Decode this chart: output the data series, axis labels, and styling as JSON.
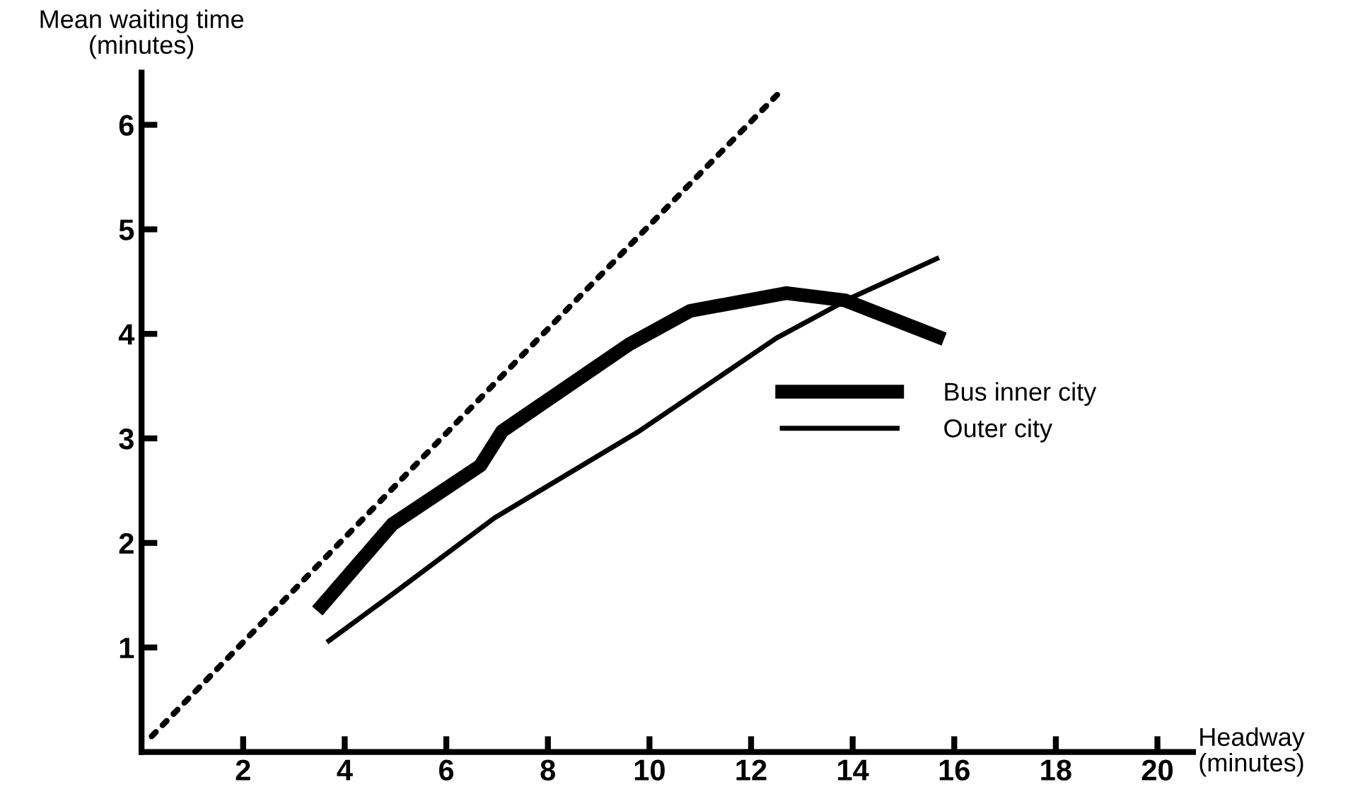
{
  "chart_data": {
    "type": "line",
    "xlabel": "Headway\n(minutes)",
    "ylabel": "Mean waiting time\n(minutes)",
    "xlim": [
      0,
      20.7
    ],
    "ylim": [
      0,
      6.5
    ],
    "xticks": [
      2,
      4,
      6,
      8,
      10,
      12,
      14,
      16,
      18,
      20
    ],
    "yticks": [
      1,
      2,
      3,
      4,
      5,
      6
    ],
    "grid": false,
    "legend": "right",
    "marker": "none",
    "series": [
      {
        "color": "#000000",
        "line_style": "dotted",
        "x": [
          0.2,
          7.1,
          12.64
        ],
        "values": [
          0.15,
          3.6,
          6.35
        ]
      },
      {
        "name": "Bus inner city",
        "color": "#000000",
        "line_style": "solid",
        "x": [
          3.46,
          4.94,
          6.67,
          7.1,
          9.6,
          10.8,
          12.7,
          13.85,
          15.8
        ],
        "values": [
          1.35,
          2.18,
          2.74,
          3.07,
          3.9,
          4.22,
          4.39,
          4.32,
          3.95
        ]
      },
      {
        "name": "Outer city",
        "color": "#000000",
        "line_style": "solid",
        "x": [
          3.65,
          4.94,
          6.95,
          9.8,
          12.5,
          13.95,
          15.7
        ],
        "values": [
          1.05,
          1.51,
          2.24,
          3.07,
          3.96,
          4.34,
          4.73
        ]
      }
    ]
  }
}
